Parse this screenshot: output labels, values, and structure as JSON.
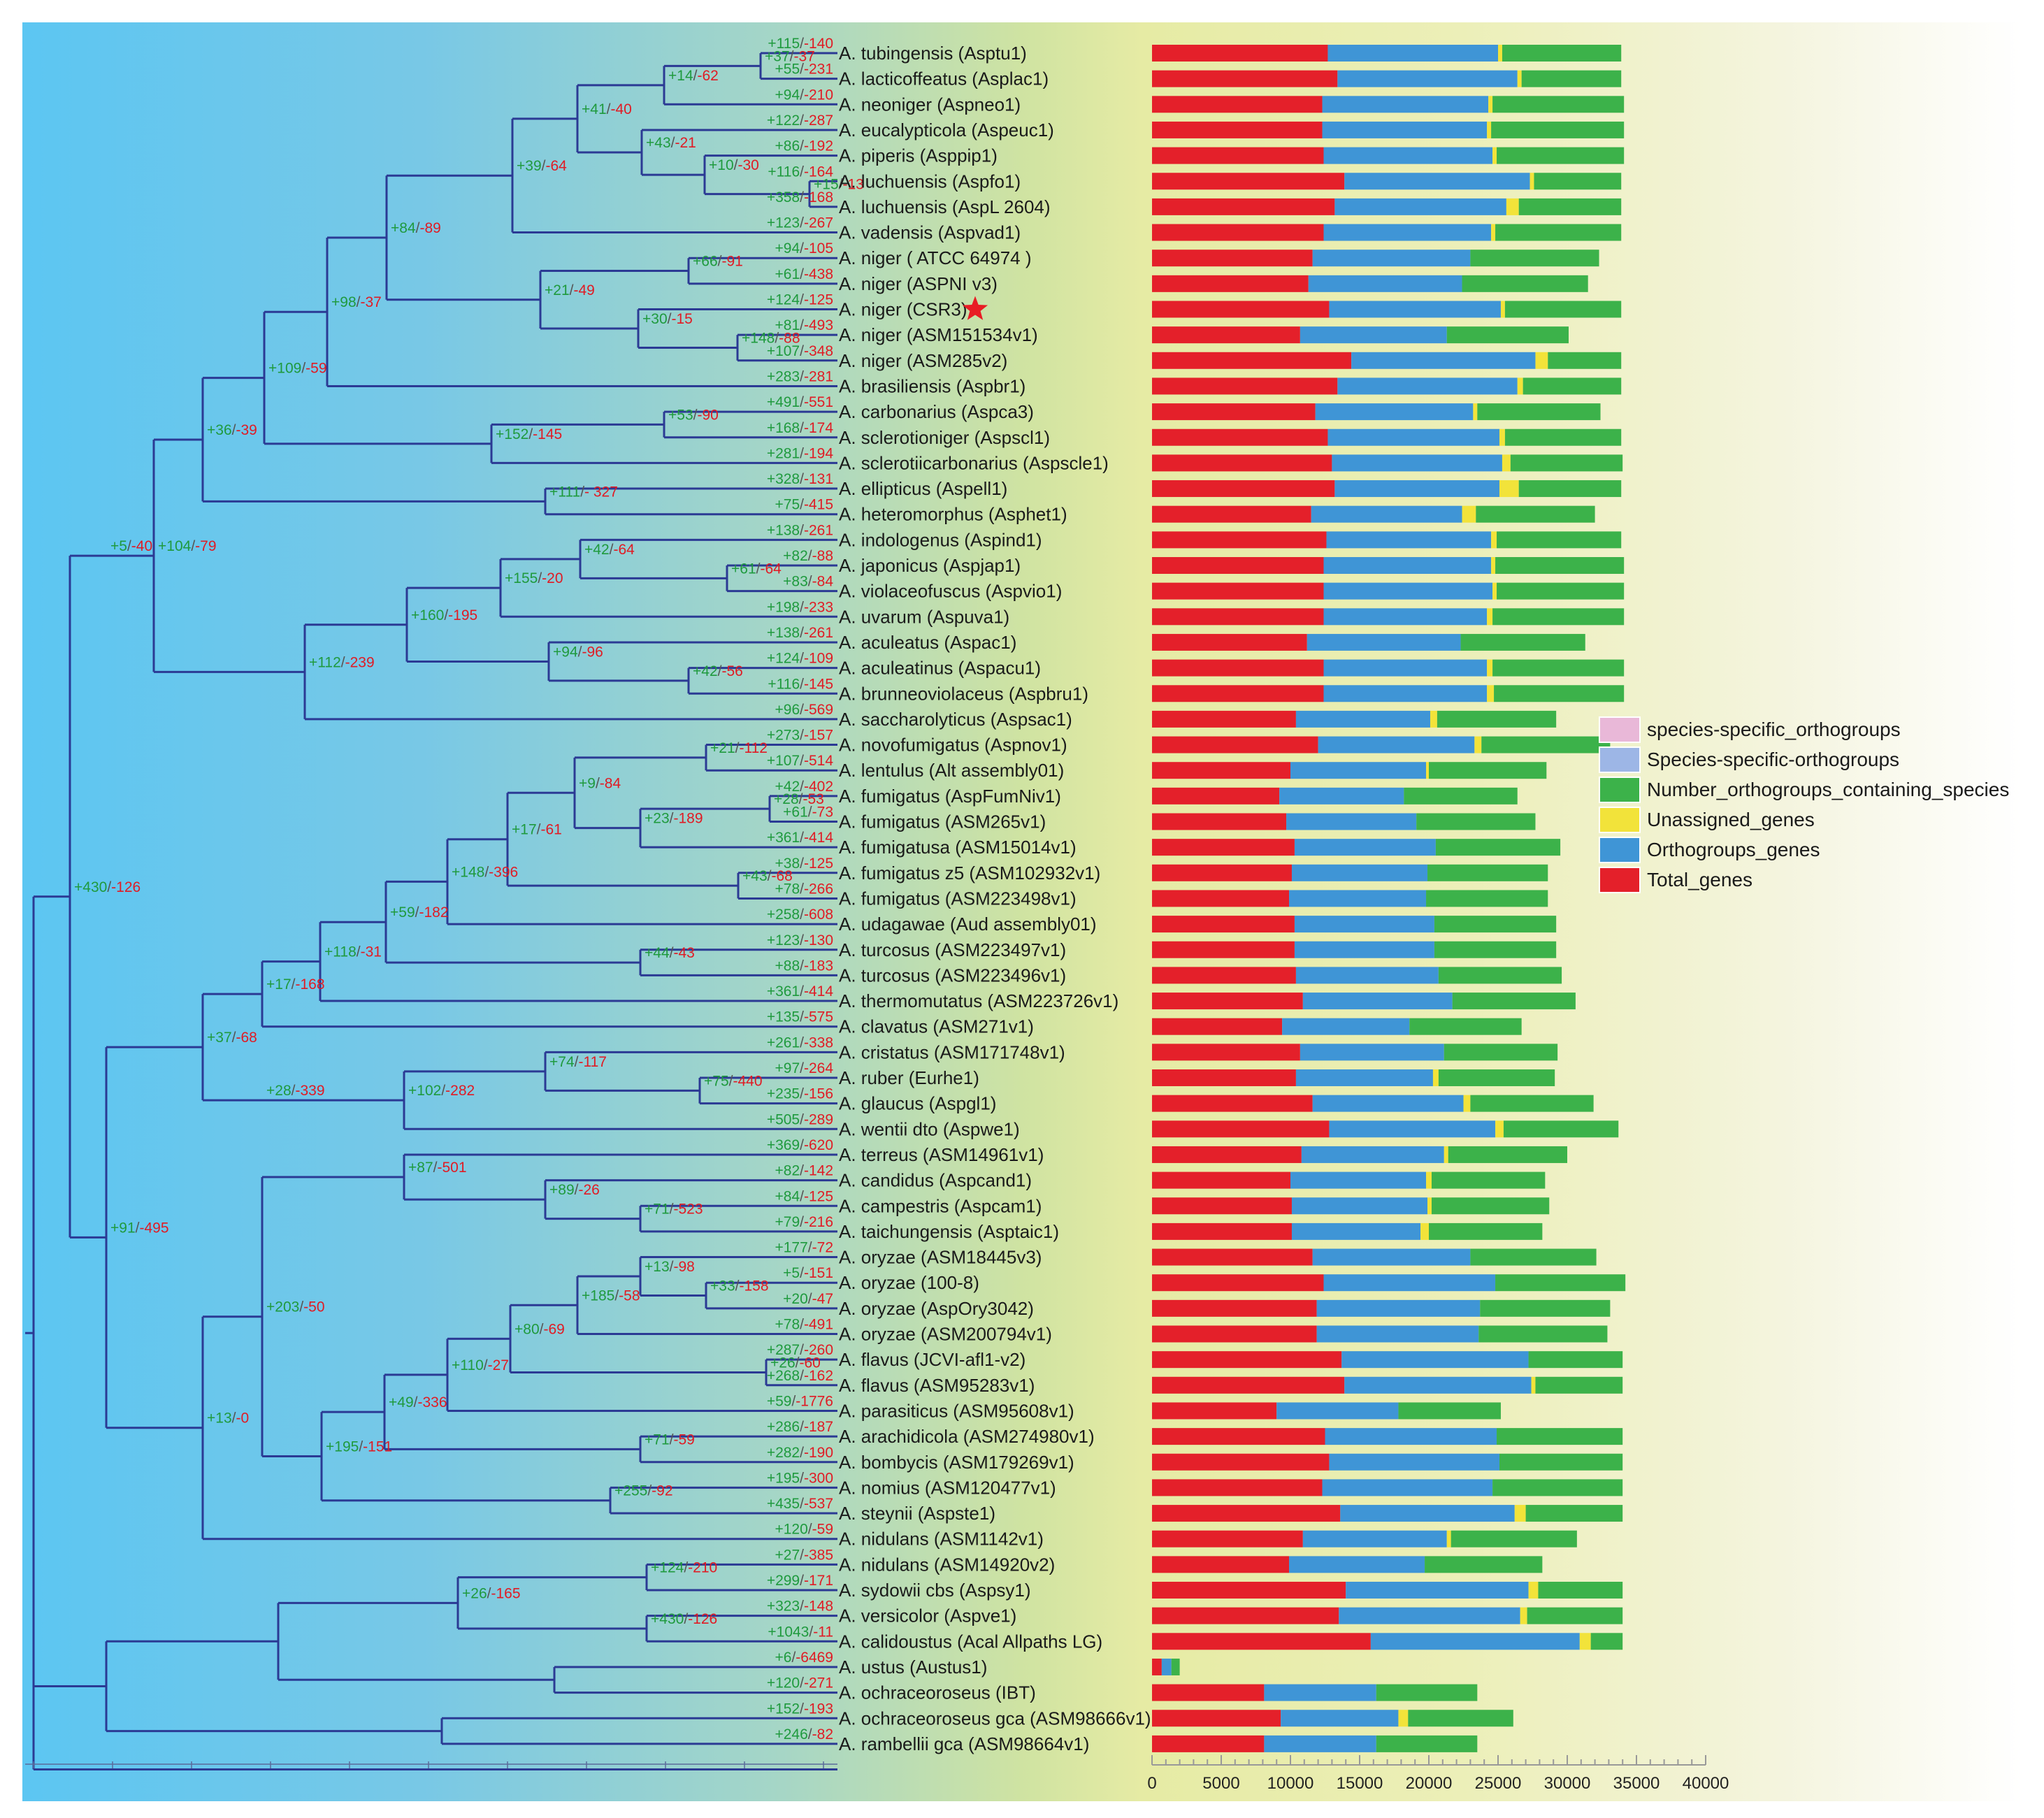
{
  "colors": {
    "species_specific_orthogroups": "#e9b8d8",
    "Species_specific_orthogroups": "#9db6e6",
    "Number_orthogroups_containing_species": "#3cb24a",
    "Unassigned_genes": "#f2e33a",
    "Orthogroups_genes": "#3f95d6",
    "Total_genes": "#e4202a",
    "branch": "#2b3a94",
    "gain": "#1f9a3e",
    "loss": "#e01b24",
    "star": "#e81c24"
  },
  "chart_data": {
    "type": "bar",
    "stacked": true,
    "orientation": "horizontal",
    "legend": [
      "species-specific_orthogroups",
      "Species-specific-orthogroups",
      "Number_orthogroups_containing_species",
      "Unassigned_genes",
      "Orthogroups_genes",
      "Total_genes"
    ],
    "legend_position": "right",
    "x_ticks": [
      "0",
      "5000",
      "10000",
      "15000",
      "20000",
      "25000",
      "30000",
      "35000",
      "40000"
    ],
    "xlim": [
      0,
      40000
    ],
    "segments": [
      "Total_genes",
      "Orthogroups_genes",
      "Unassigned_genes",
      "Number_orthogroups_containing_species"
    ],
    "rows": [
      {
        "taxon": "A. tubingensis (Asptu1)",
        "gain": "+115",
        "loss": "-140",
        "total": 12700,
        "ortho": 12300,
        "unassigned": 300,
        "number": 8600
      },
      {
        "taxon": "A. lacticoffeatus (Asplac1)",
        "gain": "+55",
        "loss": "-231",
        "total": 13400,
        "ortho": 13000,
        "unassigned": 300,
        "number": 7200
      },
      {
        "taxon": "A. neoniger (Aspneo1)",
        "gain": "+94",
        "loss": "-210",
        "total": 12300,
        "ortho": 12000,
        "unassigned": 300,
        "number": 9500
      },
      {
        "taxon": "A. eucalypticola (Aspeuc1)",
        "gain": "+122",
        "loss": "-287",
        "total": 12300,
        "ortho": 11900,
        "unassigned": 300,
        "number": 9600
      },
      {
        "taxon": "A. piperis (Asppip1)",
        "gain": "+86",
        "loss": "-192",
        "total": 12400,
        "ortho": 12200,
        "unassigned": 300,
        "number": 9200
      },
      {
        "taxon": "A. luchuensis (Aspfo1)",
        "gain": "+116",
        "loss": "-164",
        "total": 13900,
        "ortho": 13400,
        "unassigned": 300,
        "number": 6300
      },
      {
        "taxon": "A. luchuensis (AspL 2604)",
        "gain": "+358",
        "loss": "-168",
        "total": 13200,
        "ortho": 12400,
        "unassigned": 900,
        "number": 7400
      },
      {
        "taxon": "A. vadensis (Aspvad1)",
        "gain": "+123",
        "loss": "-267",
        "total": 12400,
        "ortho": 12100,
        "unassigned": 300,
        "number": 9100
      },
      {
        "taxon": "A. niger ( ATCC  64974 )",
        "gain": "+94",
        "loss": "-105",
        "total": 11600,
        "ortho": 11400,
        "unassigned": 0,
        "number": 9300
      },
      {
        "taxon": "A. niger (ASPNI v3)",
        "gain": "+61",
        "loss": "-438",
        "total": 11300,
        "ortho": 11100,
        "unassigned": 0,
        "number": 9100
      },
      {
        "taxon": "A. niger (CSR3)",
        "gain": "+124",
        "loss": "-125",
        "total": 12800,
        "ortho": 12400,
        "unassigned": 300,
        "number": 8400
      },
      {
        "taxon": "A. niger (ASM151534v1)",
        "gain": "+81",
        "loss": "-493",
        "total": 10700,
        "ortho": 10600,
        "unassigned": 0,
        "number": 8800
      },
      {
        "taxon": "A. niger (ASM285v2)",
        "gain": "+107",
        "loss": "-348",
        "total": 14400,
        "ortho": 13300,
        "unassigned": 900,
        "number": 5300
      },
      {
        "taxon": "A. brasiliensis (Aspbr1)",
        "gain": "+283",
        "loss": "-281",
        "total": 13400,
        "ortho": 13000,
        "unassigned": 400,
        "number": 7100
      },
      {
        "taxon": "A. carbonarius (Aspca3)",
        "gain": "+491",
        "loss": "-551",
        "total": 11800,
        "ortho": 11400,
        "unassigned": 300,
        "number": 8900
      },
      {
        "taxon": "A. sclerotioniger (Aspscl1)",
        "gain": "+168",
        "loss": "-174",
        "total": 12700,
        "ortho": 12400,
        "unassigned": 400,
        "number": 8400
      },
      {
        "taxon": "A. sclerotiicarbonarius (Aspscle1)",
        "gain": "+281",
        "loss": "-194",
        "total": 13000,
        "ortho": 12300,
        "unassigned": 600,
        "number": 8100
      },
      {
        "taxon": "A. ellipticus (Aspell1)",
        "gain": "+328",
        "loss": "-131",
        "total": 13200,
        "ortho": 11900,
        "unassigned": 1400,
        "number": 7400
      },
      {
        "taxon": "A. heteromorphus (Asphet1)",
        "gain": "+75",
        "loss": "-415",
        "total": 11500,
        "ortho": 10900,
        "unassigned": 1000,
        "number": 8600
      },
      {
        "taxon": "A. indologenus (Aspind1)",
        "gain": "+138",
        "loss": "-261",
        "total": 12600,
        "ortho": 11900,
        "unassigned": 400,
        "number": 9000
      },
      {
        "taxon": "A. japonicus (Aspjap1)",
        "gain": "+82",
        "loss": "-88",
        "total": 12400,
        "ortho": 12100,
        "unassigned": 300,
        "number": 9300
      },
      {
        "taxon": "A. violaceofuscus (Aspvio1)",
        "gain": "+83",
        "loss": "-84",
        "total": 12400,
        "ortho": 12200,
        "unassigned": 300,
        "number": 9200
      },
      {
        "taxon": "A. uvarum (Aspuva1)",
        "gain": "+198",
        "loss": "-233",
        "total": 12400,
        "ortho": 11800,
        "unassigned": 400,
        "number": 9500
      },
      {
        "taxon": "A. aculeatus (Aspac1)",
        "gain": "+138",
        "loss": "-261",
        "total": 11200,
        "ortho": 11100,
        "unassigned": 0,
        "number": 9000
      },
      {
        "taxon": "A. aculeatinus (Aspacu1)",
        "gain": "+124",
        "loss": "-109",
        "total": 12400,
        "ortho": 11800,
        "unassigned": 400,
        "number": 9500
      },
      {
        "taxon": "A. brunneoviolaceus (Aspbru1)",
        "gain": "+116",
        "loss": "-145",
        "total": 12400,
        "ortho": 11800,
        "unassigned": 500,
        "number": 9400
      },
      {
        "taxon": "A. saccharolyticus (Aspsac1)",
        "gain": "+96",
        "loss": "-569",
        "total": 10400,
        "ortho": 9700,
        "unassigned": 500,
        "number": 8600
      },
      {
        "taxon": "A. novofumigatus (Aspnov1)",
        "gain": "+273",
        "loss": "-157",
        "total": 12000,
        "ortho": 11300,
        "unassigned": 500,
        "number": 9300
      },
      {
        "taxon": "A. lentulus (Alt assembly01)",
        "gain": "+107",
        "loss": "-514",
        "total": 10000,
        "ortho": 9800,
        "unassigned": 200,
        "number": 8500
      },
      {
        "taxon": "A. fumigatus (AspFumNiv1)",
        "gain": "+42",
        "loss": "-402",
        "total": 9200,
        "ortho": 9000,
        "unassigned": 0,
        "number": 8200
      },
      {
        "taxon": "A. fumigatus (ASM265v1)",
        "gain": "+61",
        "loss": "-73",
        "total": 9700,
        "ortho": 9400,
        "unassigned": 0,
        "number": 8600
      },
      {
        "taxon": "A. fumigatusa (ASM15014v1)",
        "gain": "+361",
        "loss": "-414",
        "total": 10300,
        "ortho": 10200,
        "unassigned": 0,
        "number": 9000
      },
      {
        "taxon": "A. fumigatus z5 (ASM102932v1)",
        "gain": "+38",
        "loss": "-125",
        "total": 10100,
        "ortho": 9800,
        "unassigned": 0,
        "number": 8700
      },
      {
        "taxon": "A. fumigatus (ASM223498v1)",
        "gain": "+78",
        "loss": "-266",
        "total": 9900,
        "ortho": 9900,
        "unassigned": 0,
        "number": 8800
      },
      {
        "taxon": "A. udagawae (Aud assembly01)",
        "gain": "+258",
        "loss": "-608",
        "total": 10300,
        "ortho": 10100,
        "unassigned": 0,
        "number": 8800
      },
      {
        "taxon": "A. turcosus (ASM223497v1)",
        "gain": "+123",
        "loss": "-130",
        "total": 10300,
        "ortho": 10100,
        "unassigned": 0,
        "number": 8800
      },
      {
        "taxon": "A. turcosus (ASM223496v1)",
        "gain": "+88",
        "loss": "-183",
        "total": 10400,
        "ortho": 10300,
        "unassigned": 0,
        "number": 8900
      },
      {
        "taxon": "A. thermomutatus (ASM223726v1)",
        "gain": "+361",
        "loss": "-414",
        "total": 10900,
        "ortho": 10800,
        "unassigned": 0,
        "number": 8900
      },
      {
        "taxon": "A. clavatus (ASM271v1)",
        "gain": "+135",
        "loss": "-575",
        "total": 9400,
        "ortho": 9200,
        "unassigned": 0,
        "number": 8100
      },
      {
        "taxon": "A. cristatus (ASM171748v1)",
        "gain": "+261",
        "loss": "-338",
        "total": 10700,
        "ortho": 10400,
        "unassigned": 0,
        "number": 8200
      },
      {
        "taxon": "A. ruber (Eurhe1)",
        "gain": "+97",
        "loss": "-264",
        "total": 10400,
        "ortho": 9900,
        "unassigned": 400,
        "number": 8400
      },
      {
        "taxon": "A. glaucus (Aspgl1)",
        "gain": "+235",
        "loss": "-156",
        "total": 11600,
        "ortho": 10900,
        "unassigned": 500,
        "number": 8900
      },
      {
        "taxon": "A. wentii dto (Aspwe1)",
        "gain": "+505",
        "loss": "-289",
        "total": 12800,
        "ortho": 12000,
        "unassigned": 600,
        "number": 8300
      },
      {
        "taxon": "A. terreus (ASM14961v1)",
        "gain": "+369",
        "loss": "-620",
        "total": 10800,
        "ortho": 10300,
        "unassigned": 300,
        "number": 8600
      },
      {
        "taxon": "A. candidus (Aspcand1)",
        "gain": "+82",
        "loss": "-142",
        "total": 10000,
        "ortho": 9800,
        "unassigned": 400,
        "number": 8200
      },
      {
        "taxon": "A. campestris (Aspcam1)",
        "gain": "+84",
        "loss": "-125",
        "total": 10100,
        "ortho": 9800,
        "unassigned": 300,
        "number": 8500
      },
      {
        "taxon": "A. taichungensis (Asptaic1)",
        "gain": "+79",
        "loss": "-216",
        "total": 10100,
        "ortho": 9300,
        "unassigned": 600,
        "number": 8200
      },
      {
        "taxon": "A. oryzae (ASM18445v3)",
        "gain": "+177",
        "loss": "-72",
        "total": 11600,
        "ortho": 11400,
        "unassigned": 0,
        "number": 9100
      },
      {
        "taxon": "A. oryzae (100-8)",
        "gain": "+5",
        "loss": "-151",
        "total": 12400,
        "ortho": 12400,
        "unassigned": 0,
        "number": 9400
      },
      {
        "taxon": "A. oryzae (AspOry3042)",
        "gain": "+20",
        "loss": "-47",
        "total": 11900,
        "ortho": 11800,
        "unassigned": 0,
        "number": 9400
      },
      {
        "taxon": "A. oryzae (ASM200794v1)",
        "gain": "+78",
        "loss": "-491",
        "total": 11900,
        "ortho": 11700,
        "unassigned": 0,
        "number": 9300
      },
      {
        "taxon": "A. flavus (JCVI-afl1-v2)",
        "gain": "+287",
        "loss": "-260",
        "total": 13700,
        "ortho": 13500,
        "unassigned": 0,
        "number": 6800
      },
      {
        "taxon": "A. flavus (ASM95283v1)",
        "gain": "+268",
        "loss": "-162",
        "total": 13900,
        "ortho": 13500,
        "unassigned": 300,
        "number": 6300
      },
      {
        "taxon": "A. parasiticus (ASM95608v1)",
        "gain": "+59",
        "loss": "-1776",
        "total": 9000,
        "ortho": 8800,
        "unassigned": 0,
        "number": 7400
      },
      {
        "taxon": "A. arachidicola (ASM274980v1)",
        "gain": "+286",
        "loss": "-187",
        "total": 12500,
        "ortho": 12400,
        "unassigned": 0,
        "number": 9100
      },
      {
        "taxon": "A. bombycis (ASM179269v1)",
        "gain": "+282",
        "loss": "-190",
        "total": 12800,
        "ortho": 12300,
        "unassigned": 0,
        "number": 8900
      },
      {
        "taxon": "A. nomius (ASM120477v1)",
        "gain": "+195",
        "loss": "-300",
        "total": 12300,
        "ortho": 12300,
        "unassigned": 0,
        "number": 9400
      },
      {
        "taxon": "A. steynii (Aspste1)",
        "gain": "+435",
        "loss": "-537",
        "total": 13600,
        "ortho": 12600,
        "unassigned": 800,
        "number": 7000
      },
      {
        "taxon": "A. nidulans (ASM1142v1)",
        "gain": "+120",
        "loss": "-59",
        "total": 10900,
        "ortho": 10400,
        "unassigned": 300,
        "number": 9100
      },
      {
        "taxon": "A. nidulans (ASM14920v2)",
        "gain": "+27",
        "loss": "-385",
        "total": 9900,
        "ortho": 9800,
        "unassigned": 0,
        "number": 8500
      },
      {
        "taxon": "A. sydowii cbs (Aspsy1)",
        "gain": "+299",
        "loss": "-171",
        "total": 14000,
        "ortho": 13200,
        "unassigned": 700,
        "number": 6100
      },
      {
        "taxon": "A. versicolor (Aspve1)",
        "gain": "+323",
        "loss": "-148",
        "total": 13500,
        "ortho": 13100,
        "unassigned": 500,
        "number": 6900
      },
      {
        "taxon": "A. calidoustus (Acal Allpaths LG)",
        "gain": "+1043",
        "loss": "-11",
        "total": 15800,
        "ortho": 15100,
        "unassigned": 800,
        "number": 2300
      },
      {
        "taxon": "A. ustus (Austus1)",
        "gain": "+6",
        "loss": "-6469",
        "total": 700,
        "ortho": 700,
        "unassigned": 0,
        "number": 600
      },
      {
        "taxon": "A. ochraceoroseus (IBT)",
        "gain": "+120",
        "loss": "-271",
        "total": 8100,
        "ortho": 8100,
        "unassigned": 0,
        "number": 7300
      },
      {
        "taxon": "A. ochraceoroseus gca (ASM98666v1)",
        "gain": "+152",
        "loss": "-193",
        "total": 9300,
        "ortho": 8500,
        "unassigned": 700,
        "number": 7600
      },
      {
        "taxon": "A. rambellii gca (ASM98664v1)",
        "gain": "+246",
        "loss": "-82",
        "total": 8100,
        "ortho": 8100,
        "unassigned": 0,
        "number": 7300
      }
    ],
    "node_labels": [
      {
        "gain": "+37",
        "loss": "-37"
      },
      {
        "gain": "+14",
        "loss": "-62"
      },
      {
        "gain": "+15",
        "loss": "-13"
      },
      {
        "gain": "+10",
        "loss": "-30"
      },
      {
        "gain": "+43",
        "loss": "-21"
      },
      {
        "gain": "+41",
        "loss": "-40"
      },
      {
        "gain": "+39",
        "loss": "-64"
      },
      {
        "gain": "+66",
        "loss": "-91"
      },
      {
        "gain": "+148",
        "loss": "-88"
      },
      {
        "gain": "+30",
        "loss": "-15"
      },
      {
        "gain": "+21",
        "loss": "-49"
      },
      {
        "gain": "+84",
        "loss": "-89"
      },
      {
        "gain": "+98",
        "loss": "-37"
      },
      {
        "gain": "+53",
        "loss": "-90"
      },
      {
        "gain": "+152",
        "loss": "-145"
      },
      {
        "gain": "+109",
        "loss": "-59"
      },
      {
        "gain": "+111",
        "loss": "- 327"
      },
      {
        "gain": "+36",
        "loss": "-39"
      },
      {
        "gain": "+61",
        "loss": "-64"
      },
      {
        "gain": "+42",
        "loss": "-64"
      },
      {
        "gain": "+155",
        "loss": "-20"
      },
      {
        "gain": "+42",
        "loss": "-56"
      },
      {
        "gain": "+94",
        "loss": "-96"
      },
      {
        "gain": "+160",
        "loss": "-195"
      },
      {
        "gain": "+112",
        "loss": "-239"
      },
      {
        "gain": "+104",
        "loss": "-79"
      },
      {
        "gain": "+5",
        "loss": "-40"
      },
      {
        "gain": "+21",
        "loss": "-112"
      },
      {
        "gain": "+28",
        "loss": "-53"
      },
      {
        "gain": "+23",
        "loss": "-189"
      },
      {
        "gain": "+9",
        "loss": "-84"
      },
      {
        "gain": "+43",
        "loss": "-68"
      },
      {
        "gain": "+17",
        "loss": "-61"
      },
      {
        "gain": "+148",
        "loss": "-396"
      },
      {
        "gain": "+44",
        "loss": "-43"
      },
      {
        "gain": "+59",
        "loss": "-182"
      },
      {
        "gain": "+118",
        "loss": "-31"
      },
      {
        "gain": "+17",
        "loss": "-168"
      },
      {
        "gain": "+75",
        "loss": "-440"
      },
      {
        "gain": "+74",
        "loss": "-117"
      },
      {
        "gain": "+102",
        "loss": "-282"
      },
      {
        "gain": "+28",
        "loss": "-339"
      },
      {
        "gain": "+37",
        "loss": "-68"
      },
      {
        "gain": "+71",
        "loss": "-523"
      },
      {
        "gain": "+89",
        "loss": "-26"
      },
      {
        "gain": "+87",
        "loss": "-501"
      },
      {
        "gain": "+33",
        "loss": "-158"
      },
      {
        "gain": "+13",
        "loss": "-98"
      },
      {
        "gain": "+185",
        "loss": "-58"
      },
      {
        "gain": "+26",
        "loss": "-60"
      },
      {
        "gain": "+80",
        "loss": "-69"
      },
      {
        "gain": "+110",
        "loss": "-27"
      },
      {
        "gain": "+71",
        "loss": "-59"
      },
      {
        "gain": "+49",
        "loss": "-336"
      },
      {
        "gain": "+255",
        "loss": "-92"
      },
      {
        "gain": "+195",
        "loss": "-151"
      },
      {
        "gain": "+203",
        "loss": "-50"
      },
      {
        "gain": "+13",
        "loss": "-0"
      },
      {
        "gain": "+91",
        "loss": "-495"
      },
      {
        "gain": "+430",
        "loss": "-126"
      },
      {
        "gain": "+124",
        "loss": "-210"
      },
      {
        "gain": "+430",
        "loss": "-126"
      },
      {
        "gain": "+26",
        "loss": "-165"
      }
    ]
  }
}
